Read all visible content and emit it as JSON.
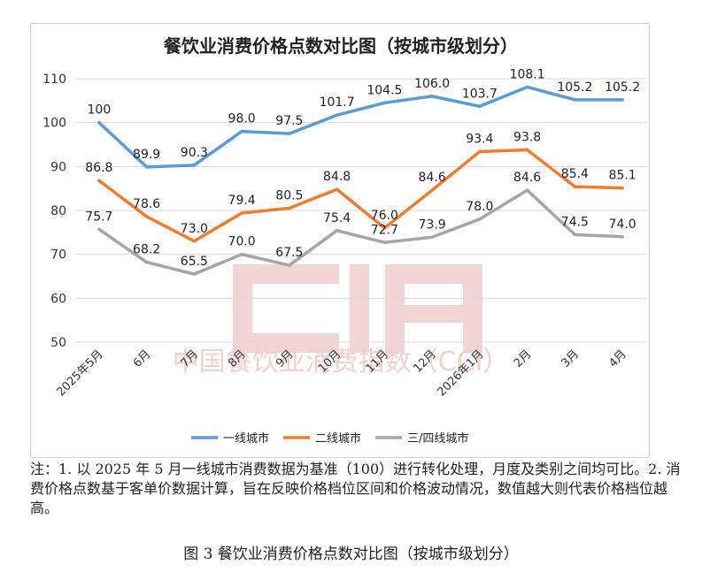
{
  "colors": {
    "tier1": "#5b9bd5",
    "tier2": "#ed7d31",
    "tier3": "#a5a5a5",
    "grid": "#d9d9d9",
    "watermark": "#f0cfcf"
  },
  "watermark": {
    "text": "中国餐饮业消费指数（CCI）"
  },
  "chart_data": {
    "type": "line",
    "title": "餐饮业消费价格点数对比图（按城市级划分）",
    "categories": [
      "2025年5月",
      "6月",
      "7月",
      "8月",
      "9月",
      "10月",
      "11月",
      "12月",
      "2026年1月",
      "2月",
      "3月",
      "4月"
    ],
    "ylim": [
      50,
      110
    ],
    "yticks": [
      "50",
      "60",
      "70",
      "80",
      "90",
      "100",
      "110"
    ],
    "grid": true,
    "legend_position": "bottom",
    "series": [
      {
        "name": "一线城市",
        "color_key": "tier1",
        "values": [
          100,
          89.9,
          90.3,
          98.0,
          97.5,
          101.7,
          104.5,
          106.0,
          103.7,
          108.1,
          105.2,
          105.2
        ],
        "labels": [
          "100",
          "89.9",
          "90.3",
          "98.0",
          "97.5",
          "101.7",
          "104.5",
          "106.0",
          "103.7",
          "108.1",
          "105.2",
          "105.2"
        ]
      },
      {
        "name": "二线城市",
        "color_key": "tier2",
        "values": [
          86.8,
          78.6,
          73.0,
          79.4,
          80.5,
          84.8,
          76.0,
          84.6,
          93.4,
          93.8,
          85.4,
          85.1
        ],
        "labels": [
          "86.8",
          "78.6",
          "73.0",
          "79.4",
          "80.5",
          "84.8",
          "76.0",
          "84.6",
          "93.4",
          "93.8",
          "85.4",
          "85.1"
        ]
      },
      {
        "name": "三/四线城市",
        "color_key": "tier3",
        "values": [
          75.7,
          68.2,
          65.5,
          70.0,
          67.5,
          75.4,
          72.7,
          73.9,
          78.0,
          84.6,
          74.5,
          74.0
        ],
        "labels": [
          "75.7",
          "68.2",
          "65.5",
          "70.0",
          "67.5",
          "75.4",
          "72.7",
          "73.9",
          "78.0",
          "84.6",
          "74.5",
          "74.0"
        ]
      }
    ]
  },
  "note": "注：1. 以 2025 年 5 月一线城市消费数据为基准（100）进行转化处理，月度及类别之间均可比。2. 消费价格点数基于客单价数据计算，旨在反映价格档位区间和价格波动情况，数值越大则代表价格档位越高。",
  "caption": "图 3  餐饮业消费价格点数对比图（按城市级划分）"
}
